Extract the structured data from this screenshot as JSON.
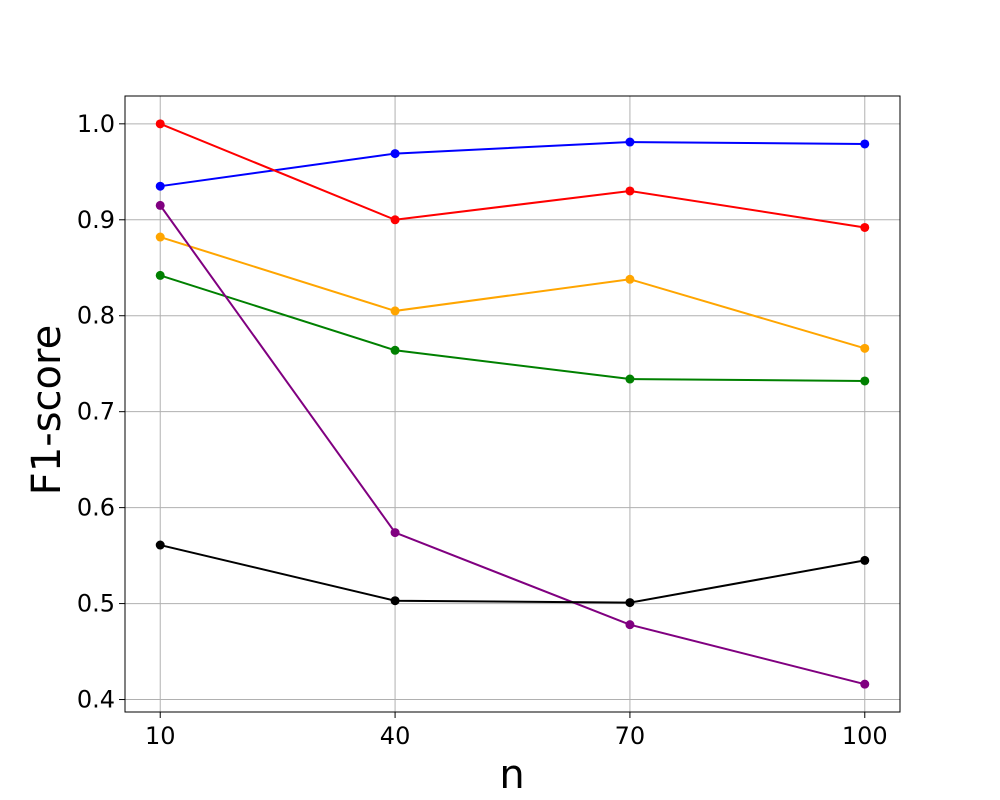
{
  "chart_data": {
    "type": "line",
    "title": "",
    "xlabel": "n",
    "ylabel": "F1-score",
    "x": [
      10,
      40,
      70,
      100
    ],
    "x_tick_labels": [
      "10",
      "40",
      "70",
      "100"
    ],
    "y_ticks": [
      0.4,
      0.5,
      0.6,
      0.7,
      0.8,
      0.9,
      1.0
    ],
    "y_tick_labels": [
      "0.4",
      "0.5",
      "0.6",
      "0.7",
      "0.8",
      "0.9",
      "1.0"
    ],
    "xlim": [
      5.5,
      104.5
    ],
    "ylim": [
      0.387,
      1.029
    ],
    "grid": true,
    "legend": false,
    "series": [
      {
        "color": "#0000ff",
        "values": [
          0.935,
          0.969,
          0.981,
          0.979
        ]
      },
      {
        "color": "#ff0000",
        "values": [
          1.0,
          0.9,
          0.93,
          0.892
        ]
      },
      {
        "color": "#ffa500",
        "values": [
          0.882,
          0.805,
          0.838,
          0.766
        ]
      },
      {
        "color": "#008000",
        "values": [
          0.842,
          0.764,
          0.734,
          0.732
        ]
      },
      {
        "color": "#800080",
        "values": [
          0.915,
          0.574,
          0.478,
          0.416
        ]
      },
      {
        "color": "#000000",
        "values": [
          0.561,
          0.503,
          0.501,
          0.545
        ]
      }
    ]
  }
}
